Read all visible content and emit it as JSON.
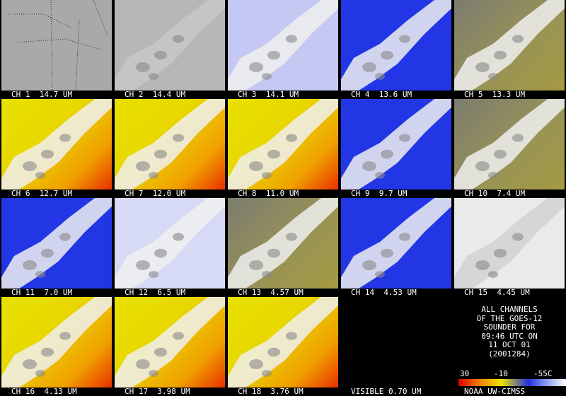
{
  "panels": [
    {
      "label": "CH 1  14.7 UM"
    },
    {
      "label": "CH 2  14.4 UM"
    },
    {
      "label": "CH 3  14.1 UM"
    },
    {
      "label": "CH 4  13.6 UM"
    },
    {
      "label": "CH 5  13.3 UM"
    },
    {
      "label": "CH 6  12.7 UM"
    },
    {
      "label": "CH 7  12.0 UM"
    },
    {
      "label": "CH 8  11.0 UM"
    },
    {
      "label": "CH 9  9.7 UM"
    },
    {
      "label": "CH 10  7.4 UM"
    },
    {
      "label": "CH 11  7.0 UM"
    },
    {
      "label": "CH 12  6.5 UM"
    },
    {
      "label": "CH 13  4.57 UM"
    },
    {
      "label": "CH 14  4.53 UM"
    },
    {
      "label": "CH 15  4.45 UM"
    },
    {
      "label": "CH 16  4.13 UM"
    },
    {
      "label": "CH 17  3.98 UM"
    },
    {
      "label": "CH 18  3.76 UM"
    },
    {
      "label": "VISIBLE 0.70 UM"
    }
  ],
  "info": {
    "lines": [
      "ALL CHANNELS",
      "OF THE GOES-12",
      "SOUNDER FOR",
      "09:46 UTC ON",
      "11 OCT 01",
      "(2001284)"
    ],
    "scale_labels": [
      "30",
      "-10",
      "-55C"
    ],
    "credit": "NOAA UW-CIMSS"
  }
}
